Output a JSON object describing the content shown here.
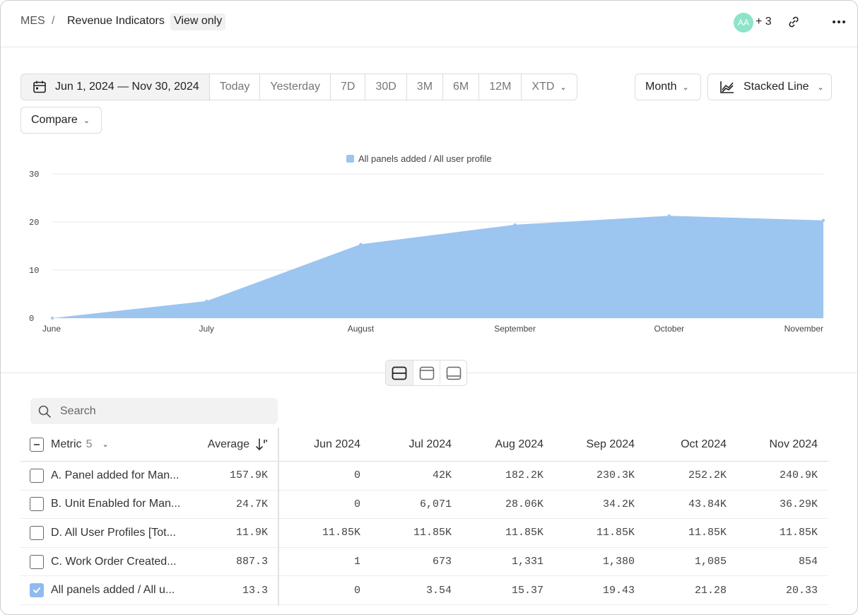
{
  "breadcrumb": {
    "root": "MES",
    "separator": "/",
    "title": "Revenue Indicators",
    "badge": "View only"
  },
  "header": {
    "avatar_initials": "AA",
    "extra_users": "+ 3"
  },
  "toolbar": {
    "date_range": "Jun 1, 2024 — Nov 30, 2024",
    "presets": [
      "Today",
      "Yesterday",
      "7D",
      "30D",
      "3M",
      "6M",
      "12M",
      "XTD"
    ],
    "interval": "Month",
    "chart_type": "Stacked Line",
    "compare": "Compare"
  },
  "chart_data": {
    "type": "area",
    "x": [
      "June",
      "July",
      "August",
      "September",
      "October",
      "November"
    ],
    "series": [
      {
        "name": "All panels added / All user profile",
        "values": [
          0,
          3.54,
          15.37,
          19.43,
          21.28,
          20.33
        ],
        "color": "#9cc5f0"
      }
    ],
    "yticks": [
      0,
      10,
      20,
      30
    ],
    "ylim": [
      0,
      30
    ],
    "grid": true,
    "legend": "top-center"
  },
  "search": {
    "placeholder": "Search"
  },
  "table": {
    "metric_header": "Metric",
    "metric_count": "5",
    "average_header": "Average",
    "months": [
      "Jun 2024",
      "Jul 2024",
      "Aug 2024",
      "Sep 2024",
      "Oct 2024",
      "Nov 2024"
    ],
    "rows": [
      {
        "name": "A. Panel added for Man...",
        "average": "157.9K",
        "values": [
          "0",
          "42K",
          "182.2K",
          "230.3K",
          "252.2K",
          "240.9K"
        ],
        "checked": false
      },
      {
        "name": "B. Unit Enabled for Man...",
        "average": "24.7K",
        "values": [
          "0",
          "6,071",
          "28.06K",
          "34.2K",
          "43.84K",
          "36.29K"
        ],
        "checked": false
      },
      {
        "name": "D. All User Profiles [Tot...",
        "average": "11.9K",
        "values": [
          "11.85K",
          "11.85K",
          "11.85K",
          "11.85K",
          "11.85K",
          "11.85K"
        ],
        "checked": false
      },
      {
        "name": "C. Work Order Created...",
        "average": "887.3",
        "values": [
          "1",
          "673",
          "1,331",
          "1,380",
          "1,085",
          "854"
        ],
        "checked": false
      },
      {
        "name": "All panels added / All u...",
        "average": "13.3",
        "values": [
          "0",
          "3.54",
          "15.37",
          "19.43",
          "21.28",
          "20.33"
        ],
        "checked": true
      }
    ]
  }
}
